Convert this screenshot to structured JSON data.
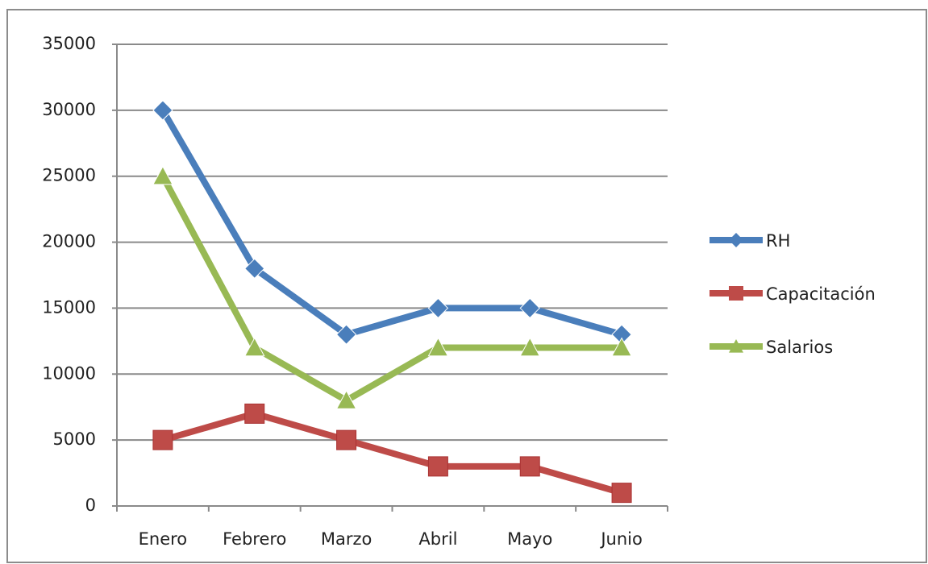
{
  "chart_data": {
    "type": "line",
    "categories": [
      "Enero",
      "Febrero",
      "Marzo",
      "Abril",
      "Mayo",
      "Junio"
    ],
    "series": [
      {
        "name": "RH",
        "color": "#4a7ebb",
        "marker": "diamond",
        "values": [
          30000,
          18000,
          13000,
          15000,
          15000,
          13000
        ]
      },
      {
        "name": "Capacitación",
        "color": "#be4b48",
        "marker": "square",
        "values": [
          5000,
          7000,
          5000,
          3000,
          3000,
          1000
        ]
      },
      {
        "name": "Salarios",
        "color": "#98b954",
        "marker": "triangle",
        "values": [
          25000,
          12000,
          8000,
          12000,
          12000,
          12000
        ]
      }
    ],
    "ylim": [
      0,
      35000
    ],
    "yticks": [
      0,
      5000,
      10000,
      15000,
      20000,
      25000,
      30000,
      35000
    ],
    "grid": true,
    "legend": "right"
  }
}
